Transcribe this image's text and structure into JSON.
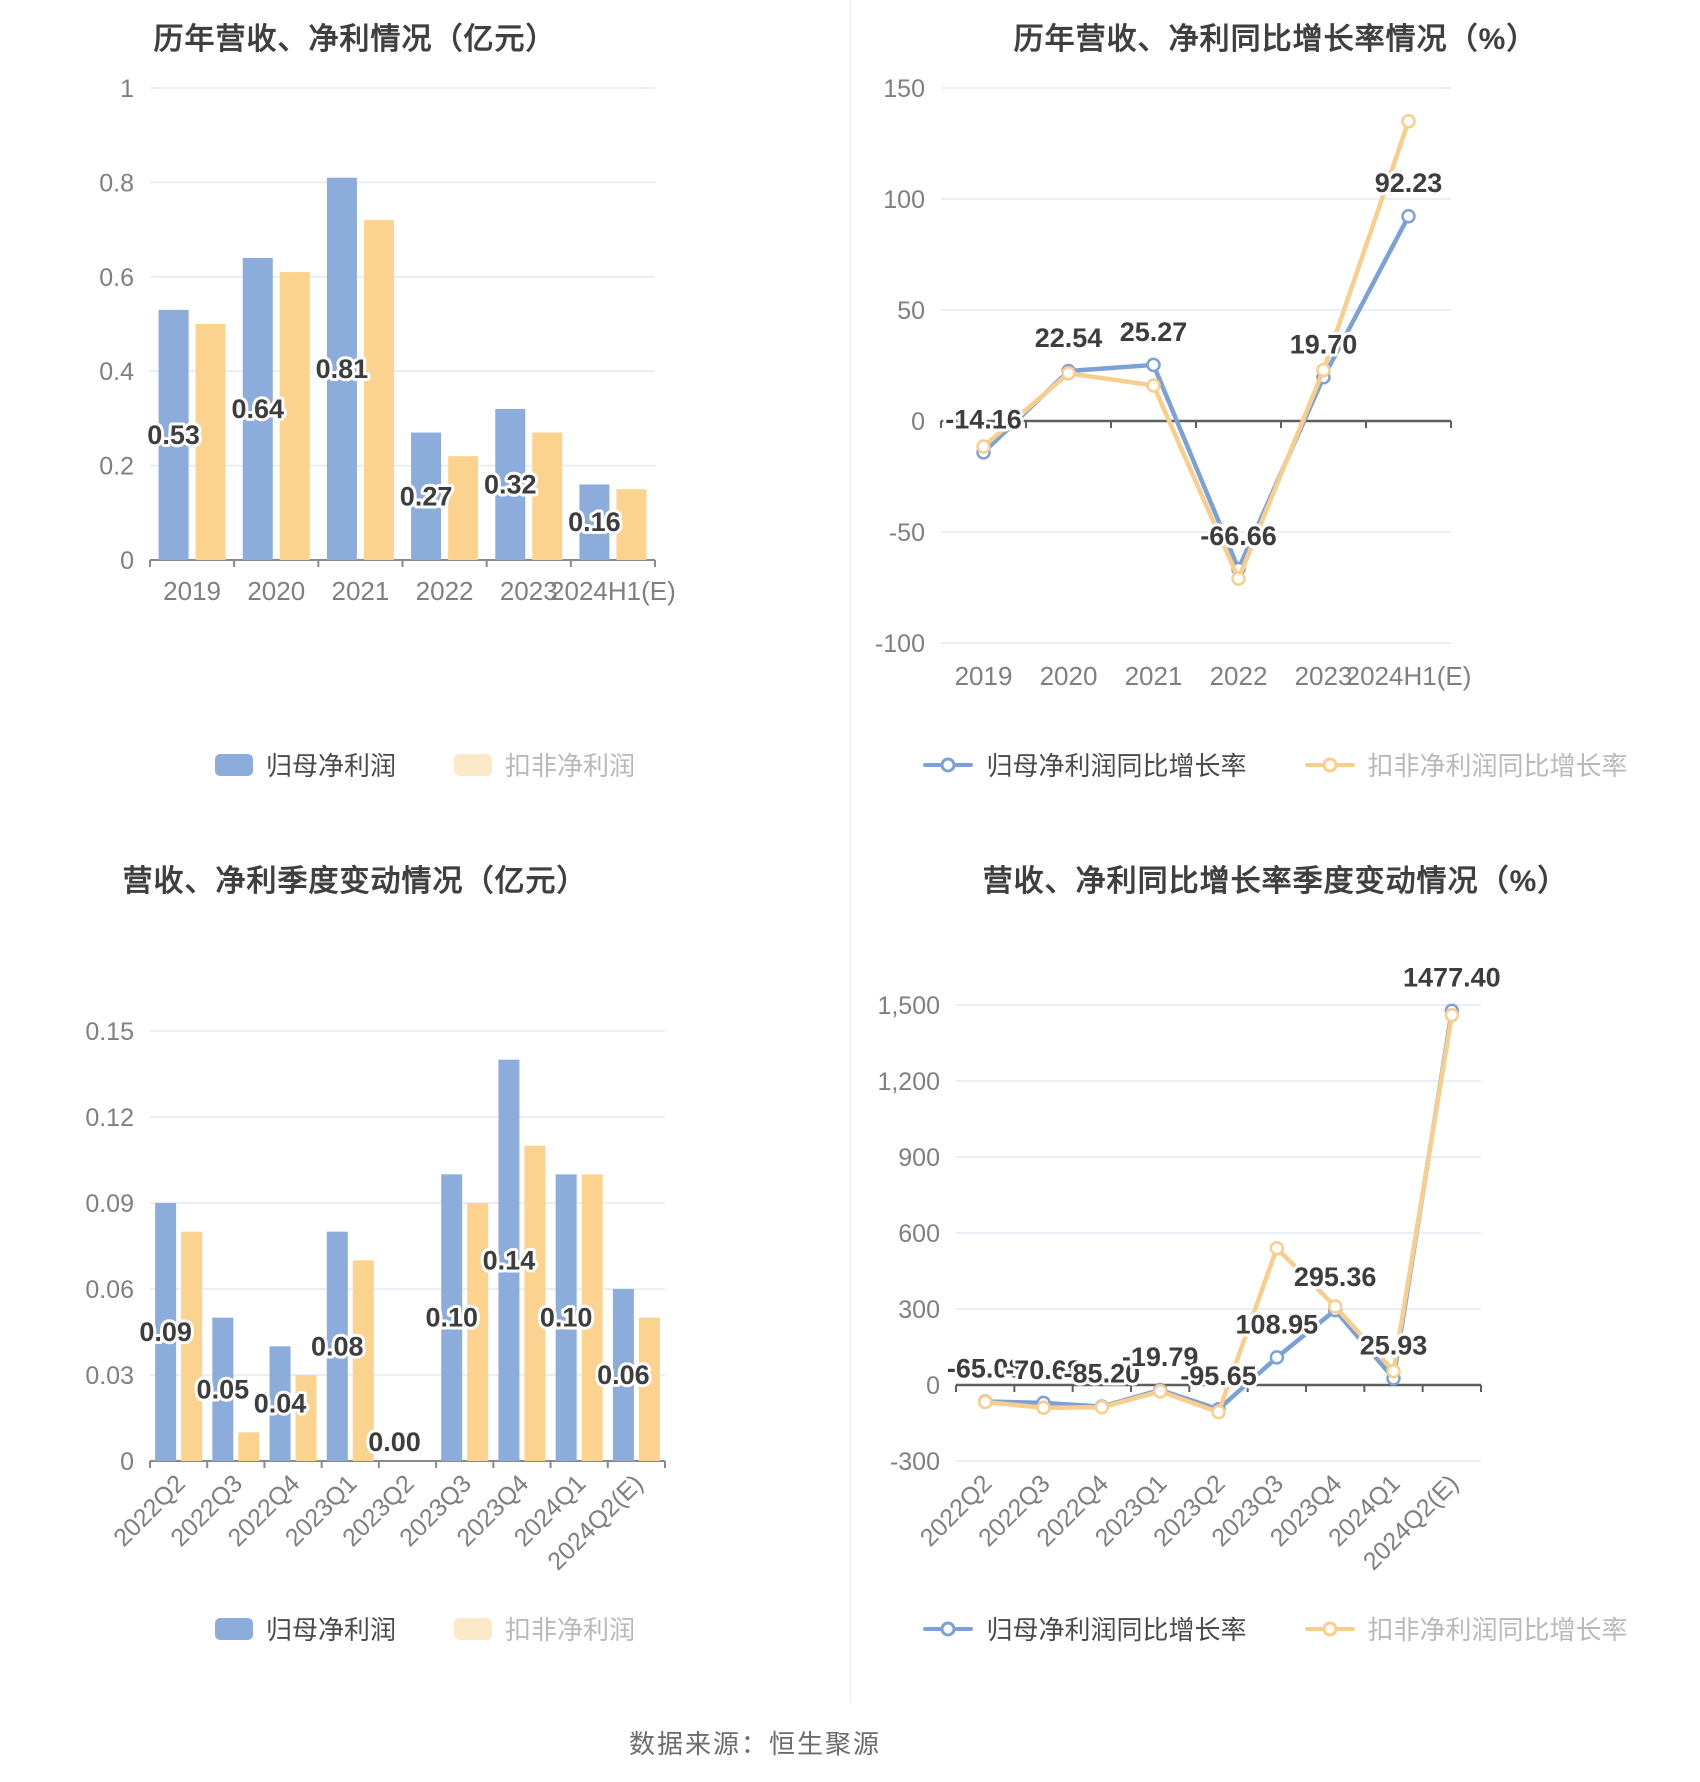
{
  "footer": {
    "source": "数据来源：恒生聚源"
  },
  "colors": {
    "bar_blue": "#8CACDC",
    "bar_yellow": "#FBD38E",
    "line_blue": "#7CA1D6",
    "line_yellow": "#F9CE8C",
    "legend_yellow_pale": "#FCE9C8",
    "grid": "#E3E9F5",
    "axis": "#8A8A8A",
    "zero_line": "#5E5E5E",
    "tick_text": "#7F7F7F",
    "label_text": "#3D3D3D"
  },
  "chart_data": [
    {
      "type": "bar",
      "title": "历年营收、净利情况（亿元）",
      "categories": [
        "2019",
        "2020",
        "2021",
        "2022",
        "2023",
        "2024H1(E)"
      ],
      "series": [
        {
          "name": "归母净利润",
          "color": "#8CACDC",
          "values": [
            0.53,
            0.64,
            0.81,
            0.27,
            0.32,
            0.16
          ]
        },
        {
          "name": "扣非净利润",
          "color": "#FBD38E",
          "legend_color": "#FCE9C8",
          "values": [
            0.5,
            0.61,
            0.72,
            0.22,
            0.27,
            0.15
          ]
        }
      ],
      "labels": [
        "0.53",
        "0.64",
        "0.81",
        "0.27",
        "0.32",
        "0.16"
      ],
      "yticks": [
        0,
        0.2,
        0.4,
        0.6,
        0.8,
        1
      ],
      "ytick_labels": [
        "0",
        "0.2",
        "0.4",
        "0.6",
        "0.8",
        "1"
      ],
      "ylim": [
        0,
        1
      ],
      "grid": true,
      "legend_position": "bottom"
    },
    {
      "type": "line",
      "title": "历年营收、净利同比增长率情况（%）",
      "categories": [
        "2019",
        "2020",
        "2021",
        "2022",
        "2023",
        "2024H1(E)"
      ],
      "series": [
        {
          "name": "归母净利润同比增长率",
          "color": "#7CA1D6",
          "values": [
            -14.16,
            22.54,
            25.27,
            -66.66,
            19.7,
            92.23
          ]
        },
        {
          "name": "扣非净利润同比增长率",
          "color": "#F9CE8C",
          "values": [
            -11.5,
            21.5,
            16.0,
            -71.0,
            23.0,
            135.0
          ]
        }
      ],
      "labels": [
        "-14.16",
        "22.54",
        "25.27",
        "-66.66",
        "19.70",
        "92.23"
      ],
      "yticks": [
        -100,
        -50,
        0,
        50,
        100,
        150
      ],
      "ytick_labels": [
        "-100",
        "-50",
        "0",
        "50",
        "100",
        "150"
      ],
      "ylim": [
        -100,
        150
      ],
      "grid": true,
      "legend_position": "bottom"
    },
    {
      "type": "bar",
      "title": "营收、净利季度变动情况（亿元）",
      "categories": [
        "2022Q2",
        "2022Q3",
        "2022Q4",
        "2023Q1",
        "2023Q2",
        "2023Q3",
        "2023Q4",
        "2024Q1",
        "2024Q2(E)"
      ],
      "series": [
        {
          "name": "归母净利润",
          "color": "#8CACDC",
          "values": [
            0.09,
            0.05,
            0.04,
            0.08,
            0.0,
            0.1,
            0.14,
            0.1,
            0.06
          ]
        },
        {
          "name": "扣非净利润",
          "color": "#FBD38E",
          "legend_color": "#FCE9C8",
          "values": [
            0.08,
            0.01,
            0.03,
            0.07,
            0.0,
            0.09,
            0.11,
            0.1,
            0.05
          ]
        }
      ],
      "labels": [
        "0.09",
        "0.05",
        "0.04",
        "0.08",
        "0.00",
        "0.10",
        "0.14",
        "0.10",
        "0.06"
      ],
      "yticks": [
        0,
        0.03,
        0.06,
        0.09,
        0.12,
        0.15
      ],
      "ytick_labels": [
        "0",
        "0.03",
        "0.06",
        "0.09",
        "0.12",
        "0.15"
      ],
      "ylim": [
        0,
        0.15
      ],
      "grid": true,
      "x_rotated": true,
      "legend_position": "bottom"
    },
    {
      "type": "line",
      "title": "营收、净利同比增长率季度变动情况（%）",
      "categories": [
        "2022Q2",
        "2022Q3",
        "2022Q4",
        "2023Q1",
        "2023Q2",
        "2023Q3",
        "2023Q4",
        "2024Q1",
        "2024Q2(E)"
      ],
      "series": [
        {
          "name": "归母净利润同比增长率",
          "color": "#7CA1D6",
          "values": [
            -65.08,
            -70.68,
            -85.2,
            -19.79,
            -95.65,
            108.95,
            295.36,
            25.93,
            1477.4
          ]
        },
        {
          "name": "扣非净利润同比增长率",
          "color": "#F9CE8C",
          "values": [
            -67.0,
            -90.0,
            -88.0,
            -25.0,
            -107.0,
            540.0,
            310.0,
            55.0,
            1460.0
          ]
        }
      ],
      "labels": [
        "-65.08",
        "-70.68",
        "-85.20",
        "-19.79",
        "-95.65",
        "108.95",
        "295.36",
        "25.93",
        "1477.40"
      ],
      "yticks": [
        -300,
        0,
        300,
        600,
        900,
        1200,
        1500
      ],
      "ytick_labels": [
        "-300",
        "0",
        "300",
        "600",
        "900",
        "1,200",
        "1,500"
      ],
      "ylim": [
        -300,
        1500
      ],
      "grid": true,
      "x_rotated": true,
      "legend_position": "bottom"
    }
  ]
}
